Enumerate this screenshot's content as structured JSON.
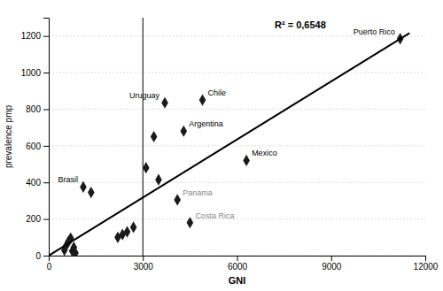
{
  "chart_data": {
    "type": "scatter",
    "x_label": "GNI",
    "y_label": "prevalence pmp",
    "xlim": [
      0,
      12000
    ],
    "ylim": [
      0,
      1300
    ],
    "xticks": [
      0,
      3000,
      6000,
      9000,
      12000
    ],
    "yticks": [
      0,
      200,
      400,
      600,
      800,
      1000,
      1200
    ],
    "grid": "y",
    "annotation": "R² = 0,6548",
    "vline_x": 3000,
    "series": [
      {
        "type": "scatter",
        "marker": "diamond",
        "color": "#1a1a1a",
        "x": [
          500,
          560,
          620,
          660,
          700,
          750,
          800,
          850,
          1100,
          1350,
          2200,
          2350,
          2500,
          2700,
          3100,
          3350,
          3500,
          3700,
          4900,
          4300,
          4500,
          4100,
          6300,
          11200
        ],
        "values": [
          30,
          55,
          75,
          85,
          95,
          25,
          45,
          15,
          375,
          345,
          100,
          115,
          130,
          155,
          480,
          650,
          415,
          835,
          850,
          680,
          180,
          305,
          520,
          1185
        ],
        "labels": [
          null,
          null,
          null,
          null,
          null,
          null,
          null,
          null,
          "Brasil",
          null,
          null,
          null,
          null,
          null,
          null,
          null,
          null,
          "Uruguay",
          "Chile",
          "Argentina",
          "Costa Rica",
          "Panama",
          "Mexico",
          "Puerto Rico"
        ],
        "label_colors": [
          null,
          null,
          null,
          null,
          null,
          null,
          null,
          null,
          "#000000",
          null,
          null,
          null,
          null,
          null,
          null,
          null,
          null,
          "#000000",
          "#000000",
          "#000000",
          "#888888",
          "#888888",
          "#000000",
          "#000000"
        ]
      },
      {
        "type": "line",
        "color": "#000000",
        "x": [
          0,
          11500
        ],
        "values": [
          0,
          1215.55
        ]
      }
    ]
  }
}
